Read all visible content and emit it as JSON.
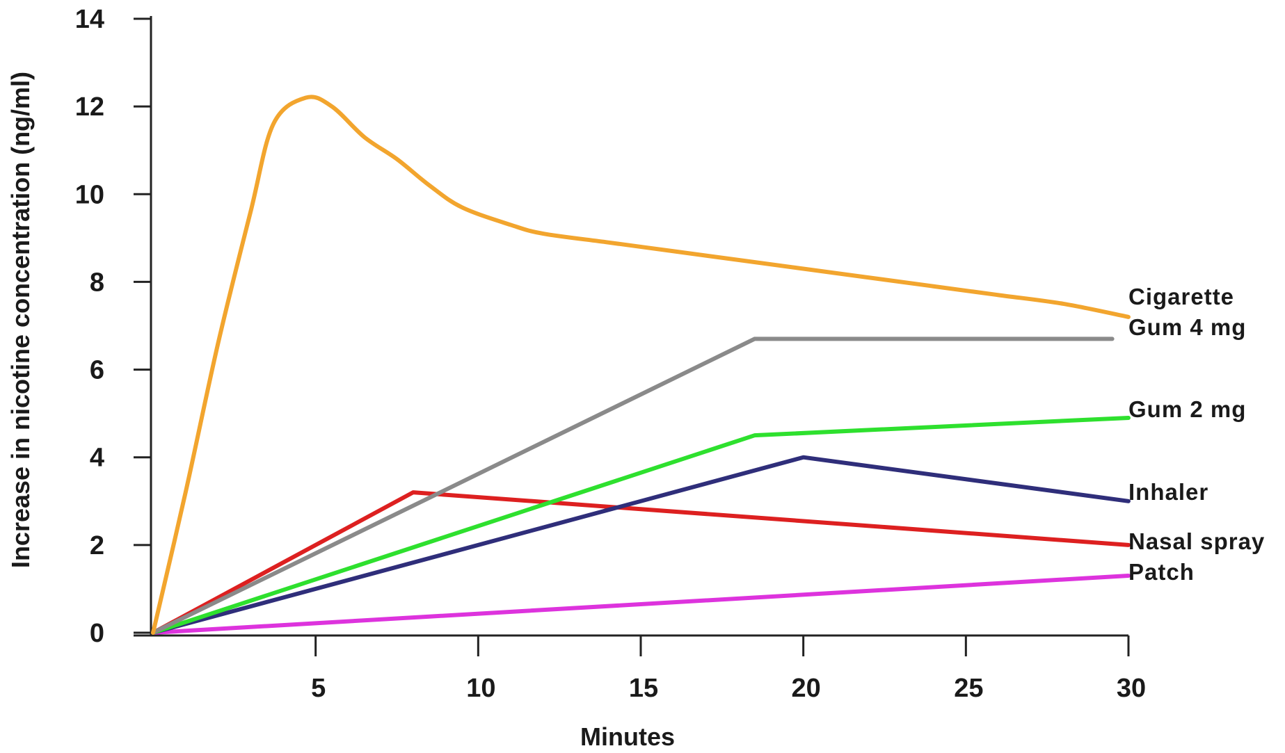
{
  "chart_data": {
    "type": "line",
    "title": "",
    "xlabel": "Minutes",
    "ylabel": "Increase in nicotine concentration (ng/ml)",
    "xlim": [
      0,
      30
    ],
    "ylim": [
      0,
      14
    ],
    "x_ticks": [
      5,
      10,
      15,
      20,
      25,
      30
    ],
    "y_ticks": [
      0,
      2,
      4,
      6,
      8,
      10,
      12,
      14
    ],
    "grid": false,
    "legend_placement": "right",
    "series": [
      {
        "name": "Cigarette",
        "color": "#f2a52e",
        "smooth": true,
        "points": [
          [
            0,
            0
          ],
          [
            1,
            3.2
          ],
          [
            2,
            6.6
          ],
          [
            3,
            9.6
          ],
          [
            3.7,
            11.6
          ],
          [
            4.7,
            12.2
          ],
          [
            5.5,
            12.0
          ],
          [
            6.5,
            11.3
          ],
          [
            7.5,
            10.8
          ],
          [
            8.5,
            10.2
          ],
          [
            9.5,
            9.7
          ],
          [
            11,
            9.3
          ],
          [
            12,
            9.1
          ],
          [
            14,
            8.9
          ],
          [
            16,
            8.7
          ],
          [
            18,
            8.5
          ],
          [
            20,
            8.3
          ],
          [
            22,
            8.1
          ],
          [
            24,
            7.9
          ],
          [
            26,
            7.7
          ],
          [
            28,
            7.5
          ],
          [
            30,
            7.2
          ]
        ]
      },
      {
        "name": "Gum 4 mg",
        "color": "#8a8a8a",
        "smooth": false,
        "points": [
          [
            0,
            0
          ],
          [
            18.5,
            6.7
          ],
          [
            29.5,
            6.7
          ]
        ]
      },
      {
        "name": "Gum 2 mg",
        "color": "#2ee02e",
        "smooth": false,
        "points": [
          [
            0,
            0
          ],
          [
            18.5,
            4.5
          ],
          [
            30,
            4.9
          ]
        ]
      },
      {
        "name": "Inhaler",
        "color": "#2f2e7a",
        "smooth": false,
        "points": [
          [
            0,
            0
          ],
          [
            20,
            4.0
          ],
          [
            30,
            3.0
          ]
        ]
      },
      {
        "name": "Nasal spray",
        "color": "#dd2020",
        "smooth": false,
        "points": [
          [
            0,
            0
          ],
          [
            8,
            3.2
          ],
          [
            30,
            2.0
          ]
        ]
      },
      {
        "name": "Patch",
        "color": "#dd33dd",
        "smooth": false,
        "points": [
          [
            0,
            0
          ],
          [
            30,
            1.3
          ]
        ]
      }
    ]
  }
}
